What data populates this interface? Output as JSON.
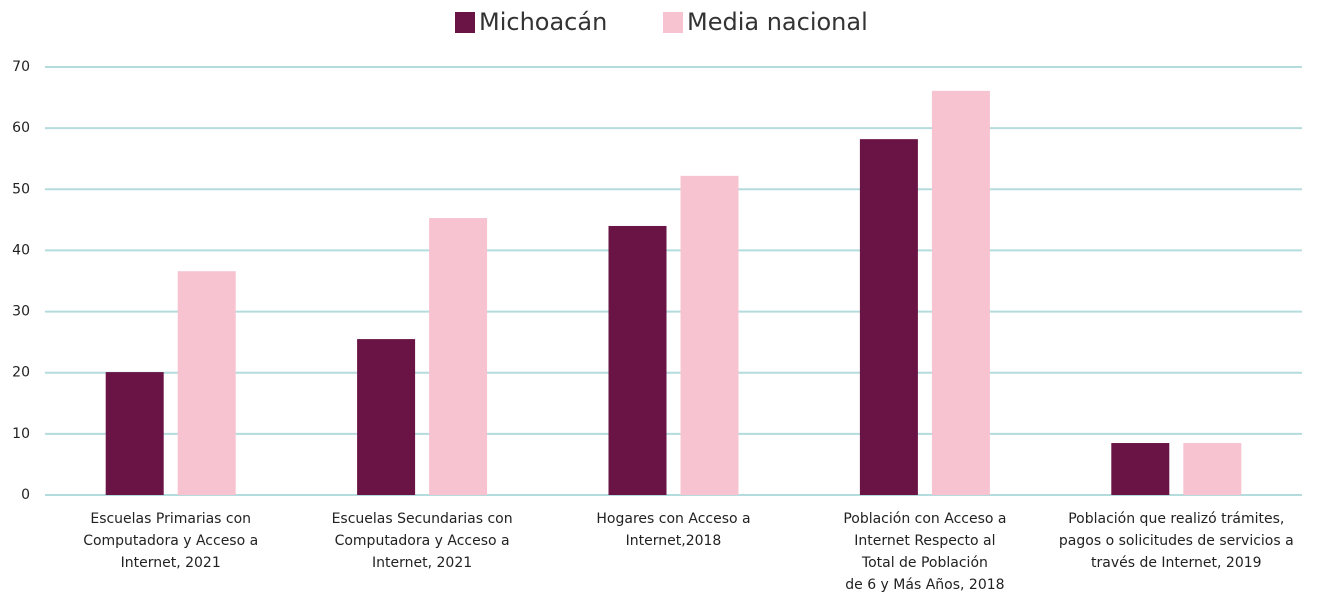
{
  "chart_data": {
    "type": "bar",
    "categories": [
      [
        "Escuelas Primarias con",
        "Computadora y Acceso a",
        "Internet, 2021"
      ],
      [
        "Escuelas Secundarias con",
        "Computadora y Acceso a",
        "Internet, 2021"
      ],
      [
        "Hogares con Acceso a",
        "Internet,2018"
      ],
      [
        "Población con Acceso a",
        "Internet Respecto al",
        "Total de Población",
        "de 6 y Más Años, 2018"
      ],
      [
        "Población que realizó trámites,",
        "pagos o solicitudes de servicios a",
        "través de Internet, 2019"
      ]
    ],
    "series": [
      {
        "name": "Michoacán",
        "color": "#6a1445",
        "values": [
          20.1,
          25.5,
          44.0,
          58.2,
          8.5
        ]
      },
      {
        "name": "Media nacional",
        "color": "#f7c3d0",
        "values": [
          36.6,
          45.3,
          52.2,
          66.1,
          8.5
        ]
      }
    ],
    "ylim": [
      0,
      70
    ],
    "yticks": [
      0,
      10,
      20,
      30,
      40,
      50,
      60,
      70
    ],
    "grid": true
  }
}
